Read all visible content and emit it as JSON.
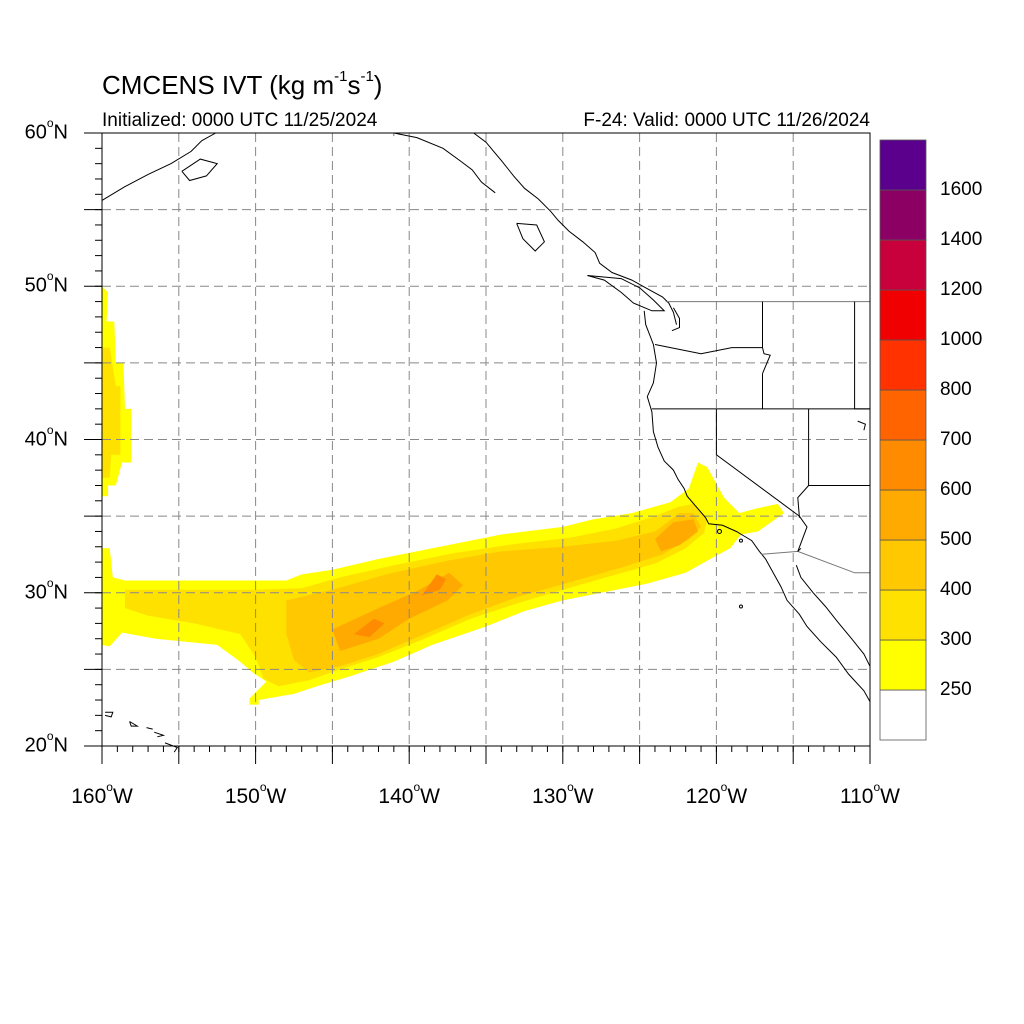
{
  "title": {
    "main": "CMCENS IVT (kg m",
    "sup1": "-1",
    "mid": "s",
    "sup2": "-1",
    "end": ")"
  },
  "subtitle_left": "Initialized: 0000 UTC 11/25/2024",
  "subtitle_right": "F-24: Valid: 0000 UTC 11/26/2024",
  "lat_labels": [
    {
      "deg": "60",
      "suffix": "N",
      "lat": 60
    },
    {
      "deg": "50",
      "suffix": "N",
      "lat": 50
    },
    {
      "deg": "40",
      "suffix": "N",
      "lat": 40
    },
    {
      "deg": "30",
      "suffix": "N",
      "lat": 30
    },
    {
      "deg": "20",
      "suffix": "N",
      "lat": 20
    }
  ],
  "lon_labels": [
    {
      "deg": "160",
      "suffix": "W",
      "lon": -160
    },
    {
      "deg": "150",
      "suffix": "W",
      "lon": -150
    },
    {
      "deg": "140",
      "suffix": "W",
      "lon": -140
    },
    {
      "deg": "130",
      "suffix": "W",
      "lon": -130
    },
    {
      "deg": "120",
      "suffix": "W",
      "lon": -120
    },
    {
      "deg": "110",
      "suffix": "W",
      "lon": -110
    }
  ],
  "colorbar": {
    "colors": [
      "#ffffff",
      "#ffff00",
      "#ffe100",
      "#ffc800",
      "#ffaa00",
      "#ff8c00",
      "#ff6400",
      "#ff3200",
      "#f00000",
      "#c8003c",
      "#8c0064",
      "#5a008c"
    ],
    "labels": [
      "250",
      "300",
      "400",
      "500",
      "600",
      "700",
      "800",
      "1000",
      "1200",
      "1400",
      "1600"
    ]
  },
  "colors": {
    "ivt_250": "#ffff00",
    "ivt_300": "#ffe100",
    "ivt_400": "#ffc800",
    "ivt_500": "#ffaa00",
    "ivt_600": "#ff8c00",
    "grid": "#888888",
    "coast": "#000000",
    "border": "#777777"
  }
}
